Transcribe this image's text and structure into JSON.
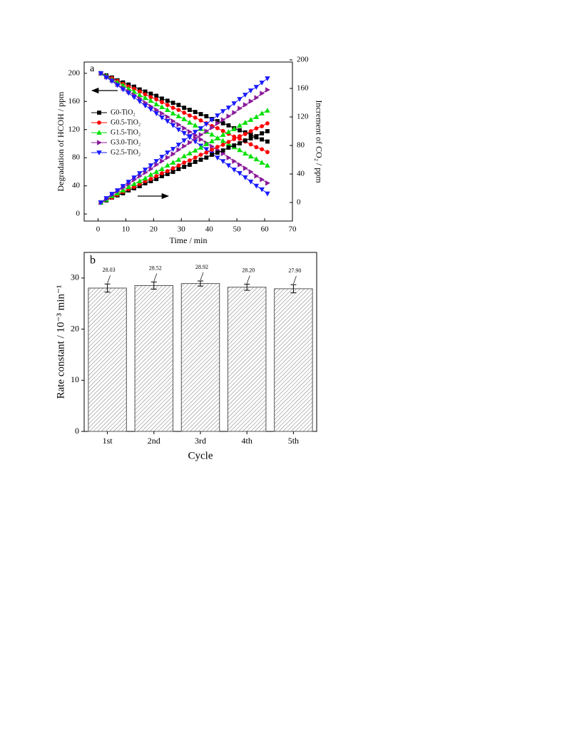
{
  "chart_data": [
    {
      "type": "line",
      "panel": "a",
      "x_label": "Time / min",
      "y_label": "Degradation of HCOH / ppm",
      "y2_label": "Increment of CO₂ / ppm",
      "xlim": [
        -5,
        70
      ],
      "xticks": [
        0,
        10,
        20,
        30,
        40,
        50,
        60,
        70
      ],
      "ylim": [
        -10,
        216
      ],
      "yticks": [
        0,
        40,
        80,
        120,
        160,
        200
      ],
      "y2lim": [
        -26,
        197
      ],
      "y2ticks": [
        0,
        40,
        80,
        120,
        160,
        200
      ],
      "x": [
        1,
        3,
        5,
        7,
        9,
        11,
        13,
        15,
        17,
        19,
        21,
        23,
        25,
        27,
        29,
        31,
        33,
        35,
        37,
        39,
        41,
        43,
        45,
        47,
        49,
        51,
        53,
        55,
        57,
        59,
        61
      ],
      "series": [
        {
          "name": "G0-TiO₂",
          "color": "#000000",
          "marker": "square",
          "values": [
            200,
            197,
            194,
            190,
            187,
            184,
            181,
            177,
            174,
            171,
            168,
            164,
            161,
            158,
            155,
            151,
            148,
            145,
            142,
            139,
            135,
            132,
            129,
            126,
            122,
            119,
            116,
            113,
            109,
            106,
            103
          ]
        },
        {
          "name": "G0.5-TiO₂",
          "color": "#ff0000",
          "marker": "circle",
          "values": [
            200,
            196,
            193,
            189,
            185,
            181,
            178,
            174,
            170,
            166,
            163,
            159,
            155,
            151,
            148,
            144,
            140,
            137,
            133,
            129,
            125,
            122,
            118,
            114,
            110,
            107,
            103,
            99,
            95,
            92,
            88
          ]
        },
        {
          "name": "G1.5-TiO₂",
          "color": "#00e000",
          "marker": "triangle-up",
          "values": [
            200,
            196,
            191,
            187,
            183,
            178,
            174,
            169,
            165,
            161,
            156,
            152,
            148,
            143,
            139,
            135,
            130,
            126,
            121,
            117,
            113,
            108,
            104,
            100,
            95,
            91,
            86,
            82,
            78,
            73,
            69
          ]
        },
        {
          "name": "G3.0-TiO₂",
          "color": "#8b1a9a",
          "marker": "triangle-right",
          "values": [
            200,
            195,
            190,
            184,
            179,
            174,
            169,
            164,
            158,
            153,
            148,
            143,
            138,
            132,
            127,
            122,
            117,
            112,
            106,
            101,
            96,
            91,
            86,
            80,
            75,
            70,
            65,
            60,
            54,
            49,
            44
          ]
        },
        {
          "name": "G2.5-TiO₂",
          "color": "#1a1aff",
          "marker": "triangle-down",
          "values": [
            200,
            194,
            189,
            183,
            177,
            172,
            166,
            160,
            154,
            149,
            143,
            137,
            132,
            126,
            120,
            115,
            109,
            103,
            97,
            92,
            86,
            80,
            75,
            69,
            63,
            58,
            52,
            46,
            40,
            35,
            29
          ]
        },
        {
          "name": "G0-TiO₂",
          "color": "#000000",
          "marker": "square",
          "axis": "y2",
          "values": [
            0,
            3,
            7,
            10,
            13,
            17,
            20,
            23,
            27,
            30,
            33,
            37,
            40,
            43,
            47,
            50,
            53,
            57,
            60,
            63,
            67,
            70,
            73,
            77,
            80,
            83,
            87,
            90,
            93,
            97,
            100
          ]
        },
        {
          "name": "G0.5-TiO₂",
          "color": "#ff0000",
          "marker": "circle",
          "axis": "y2",
          "values": [
            0,
            4,
            7,
            11,
            15,
            19,
            22,
            26,
            30,
            33,
            37,
            41,
            44,
            48,
            52,
            56,
            59,
            63,
            67,
            70,
            74,
            78,
            81,
            85,
            89,
            93,
            96,
            100,
            104,
            107,
            111
          ]
        },
        {
          "name": "G1.5-TiO₂",
          "color": "#00e000",
          "marker": "triangle-up",
          "axis": "y2",
          "values": [
            0,
            4,
            9,
            13,
            17,
            22,
            26,
            30,
            34,
            39,
            43,
            47,
            52,
            56,
            60,
            65,
            69,
            73,
            77,
            82,
            86,
            90,
            95,
            99,
            103,
            108,
            112,
            116,
            120,
            125,
            129
          ]
        },
        {
          "name": "G3.0-TiO₂",
          "color": "#8b1a9a",
          "marker": "triangle-right",
          "axis": "y2",
          "values": [
            0,
            5,
            11,
            16,
            21,
            26,
            32,
            37,
            42,
            47,
            53,
            58,
            63,
            68,
            74,
            79,
            84,
            90,
            95,
            100,
            105,
            111,
            116,
            121,
            126,
            132,
            137,
            142,
            147,
            153,
            158
          ]
        },
        {
          "name": "G2.5-TiO₂",
          "color": "#1a1aff",
          "marker": "triangle-down",
          "axis": "y2",
          "values": [
            0,
            6,
            12,
            17,
            23,
            29,
            35,
            41,
            46,
            52,
            58,
            64,
            70,
            75,
            81,
            87,
            93,
            99,
            104,
            110,
            116,
            122,
            128,
            133,
            139,
            145,
            151,
            157,
            162,
            168,
            174
          ]
        }
      ]
    },
    {
      "type": "bar",
      "panel": "b",
      "x_label": "Cycle",
      "y_label": "Rate constant / 10⁻³ min⁻¹",
      "categories": [
        "1st",
        "2nd",
        "3rd",
        "4th",
        "5th"
      ],
      "values": [
        28.03,
        28.52,
        28.92,
        28.2,
        27.9
      ],
      "value_labels": [
        "28.03",
        "28.52",
        "28.92",
        "28.20",
        "27.90"
      ],
      "errors": [
        0.8,
        0.7,
        0.5,
        0.6,
        0.8
      ],
      "color": "#555555",
      "ylim": [
        0,
        35
      ],
      "yticks": [
        0,
        10,
        20,
        30
      ]
    }
  ]
}
